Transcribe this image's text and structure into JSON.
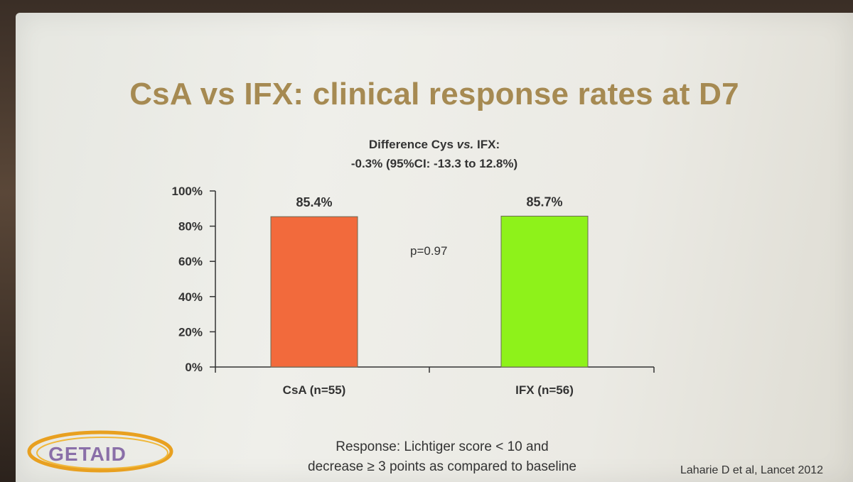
{
  "slide": {
    "title": "CsA vs IFX: clinical response rates at D7",
    "subtitle_line1_a": "Difference Cys ",
    "subtitle_line1_b": "vs.",
    "subtitle_line1_c": " IFX:",
    "subtitle_line2": "-0.3% (95%CI: -13.3 to 12.8%)",
    "pvalue": "p=0.97",
    "footnote_line1": "Response: Lichtiger score < 10 and",
    "footnote_line2": "decrease ≥ 3 points as compared to baseline",
    "citation": "Laharie D et al, Lancet 2012",
    "logo_text": "GETAID"
  },
  "colors": {
    "title": "#a68a52",
    "csa_bar": "#f26a3c",
    "ifx_bar": "#8ef21a",
    "logo_swoosh": "#e8a020"
  },
  "chart_data": {
    "type": "bar",
    "categories": [
      "CsA (n=55)",
      "IFX (n=56)"
    ],
    "values": [
      85.4,
      85.7
    ],
    "data_labels": [
      "85.4%",
      "85.7%"
    ],
    "ylim": [
      0,
      100
    ],
    "yticks": [
      "0%",
      "20%",
      "40%",
      "60%",
      "80%",
      "100%"
    ],
    "ytick_values": [
      0,
      20,
      40,
      60,
      80,
      100
    ],
    "bar_colors": [
      "#f26a3c",
      "#8ef21a"
    ],
    "grid": false
  }
}
